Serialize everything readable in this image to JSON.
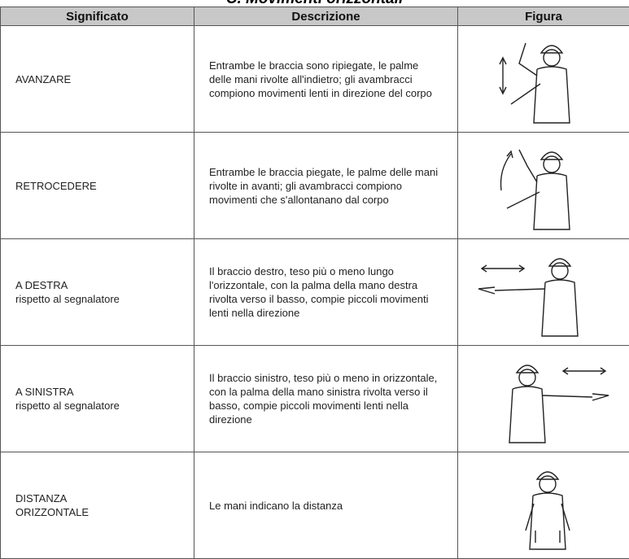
{
  "title": "C. Movimenti orizzontali",
  "table": {
    "header": [
      "Significato",
      "Descrizione",
      "Figura"
    ],
    "rows": [
      {
        "significato": [
          "AVANZARE"
        ],
        "descrizione": "Entrambe le braccia sono ripiegate, le palme delle mani rivolte all'indietro; gli avambracci compiono movimenti lenti in direzione del corpo"
      },
      {
        "significato": [
          "RETROCEDERE"
        ],
        "descrizione": "Entrambe le braccia piegate, le palme delle mani rivolte in avanti; gli avambracci compiono movimenti che s'allontanano dal corpo"
      },
      {
        "significato": [
          "A DESTRA",
          "rispetto al segnalatore"
        ],
        "descrizione": "Il braccio destro, teso più o meno lungo l'orizzontale, con la palma della mano destra rivolta verso il basso, compie piccoli movimenti lenti nella direzione"
      },
      {
        "significato": [
          "A SINISTRA",
          "rispetto al segnalatore"
        ],
        "descrizione": "Il braccio sinistro, teso più o meno in orizzontale, con la palma della mano sinistra rivolta verso il basso, compie piccoli movimenti lenti nella direzione"
      },
      {
        "significato": [
          "DISTANZA",
          "ORIZZONTALE"
        ],
        "descrizione": "Le mani indicano la distanza"
      }
    ]
  }
}
